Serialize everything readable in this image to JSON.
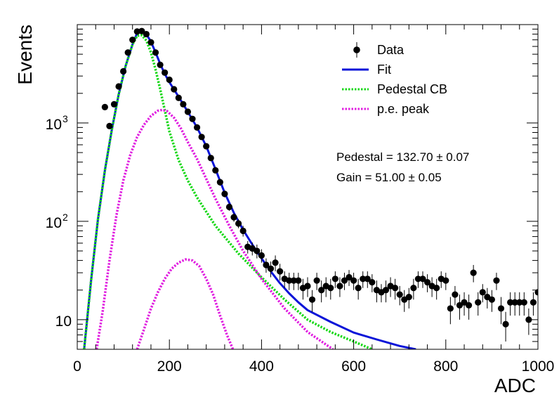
{
  "chart_data": {
    "type": "scatter",
    "title": "",
    "xlabel": "ADC",
    "ylabel": "Events",
    "xlim": [
      0,
      1000
    ],
    "ylim": [
      5,
      10000
    ],
    "yscale": "log",
    "grid": false,
    "legend_position": "top-right",
    "x_ticks": [
      "0",
      "200",
      "400",
      "600",
      "800",
      "1000"
    ],
    "y_ticks": [
      {
        "value": 10,
        "label": "10"
      },
      {
        "value": 100,
        "label": "10",
        "exponent": "2"
      },
      {
        "value": 1000,
        "label": "10",
        "exponent": "3"
      }
    ],
    "legend": [
      {
        "name": "Data",
        "style": "marker",
        "color": "#000000"
      },
      {
        "name": "Fit",
        "style": "solid",
        "color": "#0a14d8"
      },
      {
        "name": "Pedestal CB",
        "style": "dotted",
        "color": "#18d818"
      },
      {
        "name": "p.e. peak",
        "style": "dotted",
        "color": "#e01ee0"
      }
    ],
    "annotations": [
      {
        "text": "Pedestal = 132.70 ± 0.07"
      },
      {
        "text": "Gain = 51.00 ± 0.05"
      }
    ],
    "series": [
      {
        "name": "Data",
        "kind": "points_with_errors",
        "color": "#000000",
        "points": [
          {
            "x": 60,
            "y": 1450,
            "e": 50
          },
          {
            "x": 70,
            "y": 930,
            "e": 40
          },
          {
            "x": 80,
            "y": 1550,
            "e": 50
          },
          {
            "x": 90,
            "y": 2350,
            "e": 60
          },
          {
            "x": 100,
            "y": 3350,
            "e": 70
          },
          {
            "x": 110,
            "y": 5200,
            "e": 80
          },
          {
            "x": 120,
            "y": 7000,
            "e": 90
          },
          {
            "x": 130,
            "y": 8500,
            "e": 100
          },
          {
            "x": 140,
            "y": 8600,
            "e": 100
          },
          {
            "x": 150,
            "y": 8000,
            "e": 100
          },
          {
            "x": 160,
            "y": 6600,
            "e": 90
          },
          {
            "x": 170,
            "y": 5200,
            "e": 80
          },
          {
            "x": 180,
            "y": 3900,
            "e": 70
          },
          {
            "x": 190,
            "y": 3250,
            "e": 60
          },
          {
            "x": 200,
            "y": 2750,
            "e": 60
          },
          {
            "x": 210,
            "y": 2200,
            "e": 50
          },
          {
            "x": 220,
            "y": 1800,
            "e": 50
          },
          {
            "x": 230,
            "y": 1550,
            "e": 45
          },
          {
            "x": 240,
            "y": 1300,
            "e": 40
          },
          {
            "x": 250,
            "y": 1100,
            "e": 35
          },
          {
            "x": 260,
            "y": 900,
            "e": 35
          },
          {
            "x": 270,
            "y": 720,
            "e": 30
          },
          {
            "x": 280,
            "y": 580,
            "e": 25
          },
          {
            "x": 290,
            "y": 440,
            "e": 25
          },
          {
            "x": 300,
            "y": 330,
            "e": 20
          },
          {
            "x": 310,
            "y": 250,
            "e": 20
          },
          {
            "x": 320,
            "y": 190,
            "e": 15
          },
          {
            "x": 330,
            "y": 140,
            "e": 12
          },
          {
            "x": 340,
            "y": 110,
            "e": 11
          },
          {
            "x": 350,
            "y": 95,
            "e": 10
          },
          {
            "x": 360,
            "y": 80,
            "e": 10
          },
          {
            "x": 370,
            "y": 55,
            "e": 8
          },
          {
            "x": 380,
            "y": 53,
            "e": 8
          },
          {
            "x": 390,
            "y": 50,
            "e": 8
          },
          {
            "x": 400,
            "y": 45,
            "e": 7
          },
          {
            "x": 410,
            "y": 36,
            "e": 6
          },
          {
            "x": 420,
            "y": 33,
            "e": 6
          },
          {
            "x": 430,
            "y": 38,
            "e": 7
          },
          {
            "x": 440,
            "y": 31,
            "e": 6
          },
          {
            "x": 450,
            "y": 26,
            "e": 5
          },
          {
            "x": 460,
            "y": 25,
            "e": 5
          },
          {
            "x": 470,
            "y": 25,
            "e": 5
          },
          {
            "x": 480,
            "y": 25,
            "e": 5
          },
          {
            "x": 490,
            "y": 21,
            "e": 5
          },
          {
            "x": 500,
            "y": 22,
            "e": 5
          },
          {
            "x": 510,
            "y": 16,
            "e": 4
          },
          {
            "x": 520,
            "y": 25,
            "e": 5
          },
          {
            "x": 530,
            "y": 20,
            "e": 5
          },
          {
            "x": 540,
            "y": 22,
            "e": 5
          },
          {
            "x": 550,
            "y": 21,
            "e": 5
          },
          {
            "x": 560,
            "y": 26,
            "e": 5
          },
          {
            "x": 570,
            "y": 22,
            "e": 5
          },
          {
            "x": 580,
            "y": 25,
            "e": 5
          },
          {
            "x": 590,
            "y": 27,
            "e": 5
          },
          {
            "x": 600,
            "y": 25,
            "e": 5
          },
          {
            "x": 610,
            "y": 21,
            "e": 5
          },
          {
            "x": 620,
            "y": 26,
            "e": 5
          },
          {
            "x": 630,
            "y": 26,
            "e": 5
          },
          {
            "x": 640,
            "y": 24,
            "e": 5
          },
          {
            "x": 650,
            "y": 20,
            "e": 5
          },
          {
            "x": 660,
            "y": 19,
            "e": 4
          },
          {
            "x": 670,
            "y": 20,
            "e": 5
          },
          {
            "x": 680,
            "y": 22,
            "e": 5
          },
          {
            "x": 690,
            "y": 21,
            "e": 5
          },
          {
            "x": 700,
            "y": 18,
            "e": 4
          },
          {
            "x": 710,
            "y": 16,
            "e": 4
          },
          {
            "x": 720,
            "y": 17,
            "e": 4
          },
          {
            "x": 730,
            "y": 21,
            "e": 5
          },
          {
            "x": 740,
            "y": 26,
            "e": 5
          },
          {
            "x": 750,
            "y": 26,
            "e": 5
          },
          {
            "x": 760,
            "y": 24,
            "e": 5
          },
          {
            "x": 770,
            "y": 22,
            "e": 5
          },
          {
            "x": 780,
            "y": 21,
            "e": 5
          },
          {
            "x": 790,
            "y": 26,
            "e": 5
          },
          {
            "x": 800,
            "y": 25,
            "e": 5
          },
          {
            "x": 810,
            "y": 13,
            "e": 4
          },
          {
            "x": 820,
            "y": 18,
            "e": 4
          },
          {
            "x": 830,
            "y": 14,
            "e": 4
          },
          {
            "x": 840,
            "y": 15,
            "e": 4
          },
          {
            "x": 850,
            "y": 14,
            "e": 4
          },
          {
            "x": 860,
            "y": 30,
            "e": 6
          },
          {
            "x": 870,
            "y": 15,
            "e": 4
          },
          {
            "x": 880,
            "y": 19,
            "e": 4
          },
          {
            "x": 890,
            "y": 17,
            "e": 4
          },
          {
            "x": 900,
            "y": 16,
            "e": 4
          },
          {
            "x": 910,
            "y": 25,
            "e": 5
          },
          {
            "x": 920,
            "y": 13,
            "e": 4
          },
          {
            "x": 930,
            "y": 9,
            "e": 3
          },
          {
            "x": 940,
            "y": 15,
            "e": 4
          },
          {
            "x": 950,
            "y": 15,
            "e": 4
          },
          {
            "x": 960,
            "y": 15,
            "e": 4
          },
          {
            "x": 970,
            "y": 15,
            "e": 4
          },
          {
            "x": 980,
            "y": 10,
            "e": 3
          },
          {
            "x": 990,
            "y": 15,
            "e": 4
          },
          {
            "x": 1000,
            "y": 19,
            "e": 4
          }
        ]
      },
      {
        "name": "Fit",
        "kind": "line",
        "style": "solid",
        "color": "#0a14d8",
        "points": [
          {
            "x": 15,
            "y": 5
          },
          {
            "x": 30,
            "y": 25
          },
          {
            "x": 45,
            "y": 105
          },
          {
            "x": 60,
            "y": 330
          },
          {
            "x": 75,
            "y": 850
          },
          {
            "x": 90,
            "y": 1950
          },
          {
            "x": 105,
            "y": 3800
          },
          {
            "x": 120,
            "y": 6300
          },
          {
            "x": 130,
            "y": 8200
          },
          {
            "x": 140,
            "y": 8700
          },
          {
            "x": 150,
            "y": 8000
          },
          {
            "x": 160,
            "y": 6700
          },
          {
            "x": 170,
            "y": 5200
          },
          {
            "x": 180,
            "y": 4000
          },
          {
            "x": 190,
            "y": 3150
          },
          {
            "x": 200,
            "y": 2600
          },
          {
            "x": 220,
            "y": 1850
          },
          {
            "x": 240,
            "y": 1300
          },
          {
            "x": 260,
            "y": 900
          },
          {
            "x": 280,
            "y": 580
          },
          {
            "x": 300,
            "y": 340
          },
          {
            "x": 320,
            "y": 195
          },
          {
            "x": 340,
            "y": 122
          },
          {
            "x": 360,
            "y": 82
          },
          {
            "x": 380,
            "y": 58
          },
          {
            "x": 400,
            "y": 42
          },
          {
            "x": 420,
            "y": 31
          },
          {
            "x": 440,
            "y": 23.5
          },
          {
            "x": 460,
            "y": 18.5
          },
          {
            "x": 480,
            "y": 15
          },
          {
            "x": 500,
            "y": 12.5
          },
          {
            "x": 550,
            "y": 9.5
          },
          {
            "x": 600,
            "y": 7.4
          },
          {
            "x": 650,
            "y": 6.3
          },
          {
            "x": 700,
            "y": 5.4
          },
          {
            "x": 735,
            "y": 5
          }
        ]
      },
      {
        "name": "Pedestal CB",
        "kind": "line",
        "style": "dotted",
        "color": "#18d818",
        "points": [
          {
            "x": 15,
            "y": 5
          },
          {
            "x": 30,
            "y": 25
          },
          {
            "x": 45,
            "y": 105
          },
          {
            "x": 60,
            "y": 330
          },
          {
            "x": 75,
            "y": 850
          },
          {
            "x": 90,
            "y": 1950
          },
          {
            "x": 105,
            "y": 3800
          },
          {
            "x": 120,
            "y": 6300
          },
          {
            "x": 130,
            "y": 7700
          },
          {
            "x": 140,
            "y": 7800
          },
          {
            "x": 150,
            "y": 6900
          },
          {
            "x": 160,
            "y": 5200
          },
          {
            "x": 170,
            "y": 3500
          },
          {
            "x": 180,
            "y": 2200
          },
          {
            "x": 190,
            "y": 1350
          },
          {
            "x": 200,
            "y": 820
          },
          {
            "x": 220,
            "y": 420
          },
          {
            "x": 240,
            "y": 260
          },
          {
            "x": 260,
            "y": 175
          },
          {
            "x": 280,
            "y": 125
          },
          {
            "x": 300,
            "y": 90
          },
          {
            "x": 350,
            "y": 47
          },
          {
            "x": 400,
            "y": 27
          },
          {
            "x": 450,
            "y": 16
          },
          {
            "x": 500,
            "y": 10
          },
          {
            "x": 550,
            "y": 7.5
          },
          {
            "x": 600,
            "y": 6
          },
          {
            "x": 640,
            "y": 5
          }
        ]
      },
      {
        "name": "p.e. peak",
        "kind": "line",
        "style": "dotted",
        "color": "#e01ee0",
        "points": [
          {
            "x": 42,
            "y": 5
          },
          {
            "x": 55,
            "y": 12
          },
          {
            "x": 70,
            "y": 40
          },
          {
            "x": 85,
            "y": 115
          },
          {
            "x": 100,
            "y": 260
          },
          {
            "x": 115,
            "y": 470
          },
          {
            "x": 130,
            "y": 720
          },
          {
            "x": 145,
            "y": 960
          },
          {
            "x": 160,
            "y": 1180
          },
          {
            "x": 175,
            "y": 1330
          },
          {
            "x": 185,
            "y": 1360
          },
          {
            "x": 195,
            "y": 1320
          },
          {
            "x": 210,
            "y": 1130
          },
          {
            "x": 225,
            "y": 880
          },
          {
            "x": 240,
            "y": 640
          },
          {
            "x": 260,
            "y": 430
          },
          {
            "x": 280,
            "y": 270
          },
          {
            "x": 300,
            "y": 170
          },
          {
            "x": 330,
            "y": 90
          },
          {
            "x": 360,
            "y": 50
          },
          {
            "x": 400,
            "y": 26
          },
          {
            "x": 450,
            "y": 13
          },
          {
            "x": 500,
            "y": 7.5
          },
          {
            "x": 555,
            "y": 5
          }
        ]
      },
      {
        "name": "p.e. peak",
        "kind": "line",
        "style": "dotted",
        "color": "#e01ee0",
        "points": [
          {
            "x": 130,
            "y": 5
          },
          {
            "x": 145,
            "y": 8
          },
          {
            "x": 160,
            "y": 13
          },
          {
            "x": 175,
            "y": 19
          },
          {
            "x": 190,
            "y": 26
          },
          {
            "x": 205,
            "y": 33
          },
          {
            "x": 220,
            "y": 38
          },
          {
            "x": 235,
            "y": 41
          },
          {
            "x": 250,
            "y": 40
          },
          {
            "x": 265,
            "y": 35
          },
          {
            "x": 280,
            "y": 26
          },
          {
            "x": 295,
            "y": 18
          },
          {
            "x": 310,
            "y": 11
          },
          {
            "x": 325,
            "y": 7
          },
          {
            "x": 338,
            "y": 5
          }
        ]
      }
    ]
  }
}
